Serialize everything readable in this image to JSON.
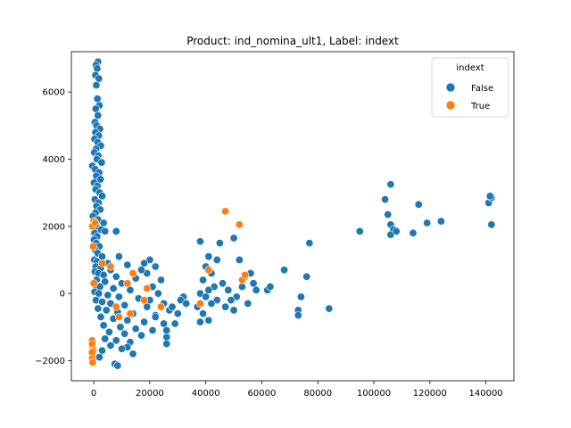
{
  "chart_data": {
    "type": "scatter",
    "title": "Product: ind_nomina_ult1, Label: indext",
    "xlabel": "",
    "ylabel": "",
    "xlim": [
      -8000,
      150000
    ],
    "ylim": [
      -2600,
      7200
    ],
    "xticks": [
      0,
      20000,
      40000,
      60000,
      80000,
      100000,
      120000,
      140000
    ],
    "xtick_labels": [
      "0",
      "20000",
      "40000",
      "60000",
      "80000",
      "100000",
      "120000",
      "140000"
    ],
    "yticks": [
      -2000,
      0,
      2000,
      4000,
      6000
    ],
    "ytick_labels": [
      "−2000",
      "0",
      "2000",
      "4000",
      "6000"
    ],
    "grid": false,
    "legend": {
      "title": "indext",
      "placement": "top-right",
      "entries": [
        "False",
        "True"
      ]
    },
    "colors": {
      "False": "#1f77b4",
      "True": "#ff7f0e"
    },
    "series": [
      {
        "name": "False",
        "points": [
          [
            1500,
            6900
          ],
          [
            800,
            6800
          ],
          [
            1200,
            6700
          ],
          [
            600,
            6500
          ],
          [
            1800,
            6400
          ],
          [
            900,
            6200
          ],
          [
            1300,
            5800
          ],
          [
            2000,
            5600
          ],
          [
            700,
            5500
          ],
          [
            1500,
            5300
          ],
          [
            400,
            5100
          ],
          [
            1000,
            5000
          ],
          [
            2200,
            4900
          ],
          [
            600,
            4800
          ],
          [
            1800,
            4700
          ],
          [
            300,
            4600
          ],
          [
            1400,
            4500
          ],
          [
            2500,
            4400
          ],
          [
            800,
            4300
          ],
          [
            200,
            4200
          ],
          [
            1600,
            4100
          ],
          [
            1100,
            4000
          ],
          [
            2800,
            3900
          ],
          [
            -500,
            3800
          ],
          [
            500,
            3700
          ],
          [
            1900,
            3600
          ],
          [
            900,
            3500
          ],
          [
            2400,
            3400
          ],
          [
            100,
            3300
          ],
          [
            1300,
            3200
          ],
          [
            700,
            3100
          ],
          [
            2100,
            3000
          ],
          [
            3000,
            2900
          ],
          [
            400,
            2800
          ],
          [
            1700,
            2700
          ],
          [
            1000,
            2600
          ],
          [
            2300,
            2500
          ],
          [
            600,
            2400
          ],
          [
            -300,
            2300
          ],
          [
            1500,
            2200
          ],
          [
            3500,
            2100
          ],
          [
            800,
            2000
          ],
          [
            2600,
            1900
          ],
          [
            300,
            1800
          ],
          [
            1200,
            1700
          ],
          [
            4000,
            1850
          ],
          [
            8000,
            1850
          ],
          [
            100,
            1600
          ],
          [
            900,
            1500
          ],
          [
            2000,
            1400
          ],
          [
            500,
            1300
          ],
          [
            1400,
            1200
          ],
          [
            3000,
            1100
          ],
          [
            9000,
            1100
          ],
          [
            200,
            1000
          ],
          [
            1100,
            950
          ],
          [
            5000,
            900
          ],
          [
            12000,
            850
          ],
          [
            700,
            800
          ],
          [
            2500,
            750
          ],
          [
            6000,
            700
          ],
          [
            400,
            650
          ],
          [
            1600,
            600
          ],
          [
            3500,
            550
          ],
          [
            8000,
            500
          ],
          [
            15000,
            450
          ],
          [
            1000,
            400
          ],
          [
            4000,
            350
          ],
          [
            10000,
            300
          ],
          [
            600,
            250
          ],
          [
            2200,
            200
          ],
          [
            7000,
            150
          ],
          [
            13000,
            100
          ],
          [
            300,
            50
          ],
          [
            1800,
            0
          ],
          [
            5000,
            -50
          ],
          [
            9000,
            -100
          ],
          [
            16000,
            -150
          ],
          [
            800,
            -200
          ],
          [
            3000,
            -250
          ],
          [
            6000,
            -300
          ],
          [
            11000,
            -350
          ],
          [
            19000,
            -400
          ],
          [
            1500,
            -450
          ],
          [
            4500,
            -500
          ],
          [
            8500,
            -550
          ],
          [
            14000,
            -600
          ],
          [
            22000,
            -650
          ],
          [
            2500,
            -700
          ],
          [
            7000,
            -750
          ],
          [
            12000,
            -800
          ],
          [
            18000,
            -850
          ],
          [
            25000,
            -900
          ],
          [
            3500,
            -950
          ],
          [
            9500,
            -1000
          ],
          [
            15000,
            -1050
          ],
          [
            21000,
            -1100
          ],
          [
            5500,
            -1150
          ],
          [
            11000,
            -1200
          ],
          [
            17000,
            -1250
          ],
          [
            26000,
            -1300
          ],
          [
            4000,
            -1350
          ],
          [
            8000,
            -1400
          ],
          [
            13000,
            -1450
          ],
          [
            26000,
            -1500
          ],
          [
            6000,
            -1550
          ],
          [
            12000,
            -1600
          ],
          [
            3000,
            -1700
          ],
          [
            14000,
            -1800
          ],
          [
            7500,
            -2100
          ],
          [
            8500,
            -2150
          ],
          [
            2000,
            -1900
          ],
          [
            10000,
            -1650
          ],
          [
            20000,
            1000
          ],
          [
            22000,
            800
          ],
          [
            19000,
            600
          ],
          [
            24000,
            400
          ],
          [
            21000,
            200
          ],
          [
            23000,
            0
          ],
          [
            20000,
            -200
          ],
          [
            25000,
            -300
          ],
          [
            27000,
            -500
          ],
          [
            22000,
            -700
          ],
          [
            28000,
            -400
          ],
          [
            30000,
            -600
          ],
          [
            32000,
            -100
          ],
          [
            29000,
            -900
          ],
          [
            26000,
            -1100
          ],
          [
            31000,
            -200
          ],
          [
            33000,
            -300
          ],
          [
            18000,
            900
          ],
          [
            17000,
            700
          ],
          [
            38000,
            1550
          ],
          [
            41000,
            1100
          ],
          [
            44000,
            1000
          ],
          [
            45000,
            1500
          ],
          [
            40000,
            800
          ],
          [
            42000,
            600
          ],
          [
            39000,
            400
          ],
          [
            43000,
            200
          ],
          [
            41000,
            100
          ],
          [
            38000,
            0
          ],
          [
            40000,
            -100
          ],
          [
            44000,
            -200
          ],
          [
            42000,
            -300
          ],
          [
            37000,
            -400
          ],
          [
            39000,
            -600
          ],
          [
            41000,
            -800
          ],
          [
            38000,
            -850
          ],
          [
            46000,
            300
          ],
          [
            48000,
            100
          ],
          [
            50000,
            1650
          ],
          [
            52000,
            1000
          ],
          [
            54000,
            500
          ],
          [
            53000,
            200
          ],
          [
            51000,
            -100
          ],
          [
            55000,
            -300
          ],
          [
            49000,
            -200
          ],
          [
            57000,
            300
          ],
          [
            58000,
            100
          ],
          [
            56000,
            600
          ],
          [
            47000,
            -400
          ],
          [
            50000,
            -500
          ],
          [
            62000,
            100
          ],
          [
            63000,
            200
          ],
          [
            68000,
            700
          ],
          [
            73000,
            -500
          ],
          [
            74000,
            -100
          ],
          [
            73000,
            -650
          ],
          [
            77000,
            1500
          ],
          [
            76000,
            500
          ],
          [
            84000,
            -450
          ],
          [
            95000,
            1850
          ],
          [
            104000,
            2800
          ],
          [
            106000,
            3250
          ],
          [
            105000,
            2350
          ],
          [
            106000,
            2050
          ],
          [
            107000,
            1900
          ],
          [
            106000,
            1750
          ],
          [
            108000,
            1850
          ],
          [
            114000,
            1800
          ],
          [
            116000,
            2650
          ],
          [
            119000,
            2100
          ],
          [
            124000,
            2150
          ],
          [
            141000,
            2700
          ],
          [
            142000,
            2850
          ],
          [
            141500,
            2900
          ],
          [
            142000,
            2050
          ]
        ]
      },
      {
        "name": "True",
        "points": [
          [
            0,
            2150
          ],
          [
            -500,
            2000
          ],
          [
            500,
            2100
          ],
          [
            -200,
            1400
          ],
          [
            0,
            300
          ],
          [
            3000,
            900
          ],
          [
            6000,
            800
          ],
          [
            8000,
            -400
          ],
          [
            14000,
            600
          ],
          [
            13000,
            -600
          ],
          [
            19000,
            150
          ],
          [
            18000,
            -200
          ],
          [
            24000,
            -400
          ],
          [
            12000,
            300
          ],
          [
            9000,
            -700
          ],
          [
            41000,
            700
          ],
          [
            38000,
            -300
          ],
          [
            47000,
            2450
          ],
          [
            52000,
            2050
          ],
          [
            53000,
            400
          ],
          [
            54000,
            550
          ],
          [
            -600,
            -1400
          ],
          [
            -500,
            -1600
          ],
          [
            -400,
            -1800
          ],
          [
            -700,
            -1950
          ],
          [
            -300,
            -2000
          ],
          [
            -600,
            -1500
          ],
          [
            -200,
            -1700
          ],
          [
            -500,
            -1900
          ],
          [
            -400,
            -2050
          ],
          [
            -600,
            -1750
          ]
        ]
      }
    ]
  }
}
